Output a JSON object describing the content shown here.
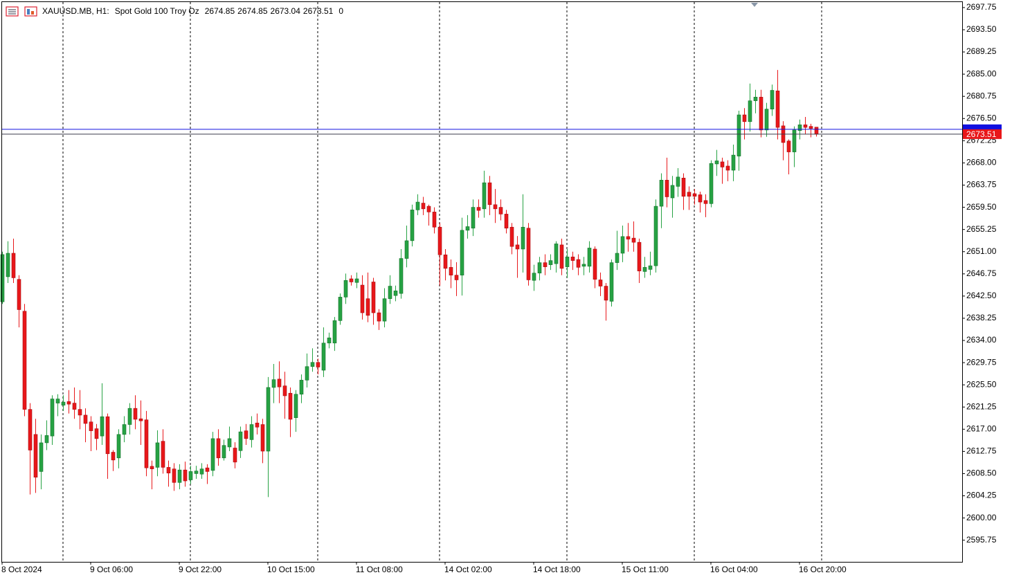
{
  "chart_data": {
    "type": "candlestick",
    "title": "XAUUSD.MB, H1:",
    "subtitle": "Spot Gold 100 Troy Oz",
    "ohlc": [
      2674.85,
      2674.85,
      2673.04,
      2673.51
    ],
    "volume": 0,
    "up_color": "#26a243",
    "down_color": "#e8171a",
    "bid": 2673.51,
    "ask": 2674.44,
    "bid_color": "#e8171a",
    "ask_color": "#1010e0",
    "ylim": [
      2591.6,
      2698.8
    ],
    "yticks": [
      2697.75,
      {
        "value": 2693.5,
        "label": "2693.50"
      },
      2689.25,
      {
        "value": 2685,
        "label": "2685.00"
      },
      2680.75,
      {
        "value": 2676.5,
        "label": "2676.50"
      },
      2672.25,
      {
        "value": 2668,
        "label": "2668.00"
      },
      2663.75,
      {
        "value": 2659.5,
        "label": "2659.50"
      },
      2655.25,
      {
        "value": 2651,
        "label": "2651.00"
      },
      2646.75,
      {
        "value": 2642.5,
        "label": "2642.50"
      },
      2638.25,
      {
        "value": 2634,
        "label": "2634.00"
      },
      2629.75,
      {
        "value": 2625.5,
        "label": "2625.50"
      },
      2621.25,
      {
        "value": 2617,
        "label": "2617.00"
      },
      2612.75,
      {
        "value": 2608.5,
        "label": "2608.50"
      },
      2604.25,
      {
        "value": 2600,
        "label": "2600.00"
      },
      2595.75
    ],
    "categories": [
      "8 Oct 2024",
      null,
      null,
      null,
      null,
      null,
      null,
      null,
      null,
      null,
      null,
      null,
      null,
      null,
      null,
      null,
      "9 Oct 06:00",
      null,
      null,
      null,
      null,
      null,
      null,
      null,
      null,
      null,
      null,
      null,
      null,
      null,
      null,
      null,
      "9 Oct 22:00",
      null,
      null,
      null,
      null,
      null,
      null,
      null,
      null,
      null,
      null,
      null,
      null,
      null,
      null,
      null,
      "10 Oct 15:00",
      null,
      null,
      null,
      null,
      null,
      null,
      null,
      null,
      null,
      null,
      null,
      null,
      null,
      null,
      null,
      "11 Oct 08:00",
      null,
      null,
      null,
      null,
      null,
      null,
      null,
      null,
      null,
      null,
      null,
      null,
      null,
      null,
      null,
      "14 Oct 02:00",
      null,
      null,
      null,
      null,
      null,
      null,
      null,
      null,
      null,
      null,
      null,
      null,
      null,
      null,
      null,
      "14 Oct 18:00",
      null,
      null,
      null,
      null,
      null,
      null,
      null,
      null,
      null,
      null,
      null,
      null,
      null,
      null,
      null,
      "15 Oct 11:00",
      null,
      null,
      null,
      null,
      null,
      null,
      null,
      null,
      null,
      null,
      null,
      null,
      null,
      null,
      null,
      "16 Oct 04:00",
      null,
      null,
      null,
      null,
      null,
      null,
      null,
      null,
      null,
      null,
      null,
      null,
      null,
      null,
      null,
      "16 Oct 20:00",
      null,
      null,
      null
    ],
    "open": [
      2641.4,
      2646.2,
      2650.7,
      2645.7,
      2639.6,
      2620.8,
      2616,
      2608.9,
      2614.4,
      2615.7,
      2622,
      2621.6,
      2622.3,
      2622,
      2620.8,
      2619.7,
      2618.4,
      2617.1,
      2615.7,
      2619.4,
      2612.6,
      2611.5,
      2616,
      2617.9,
      2621,
      2619,
      2618.8,
      2609.9,
      2609.7,
      2614.7,
      2609.7,
      2609.4,
      2606.8,
      2609.2,
      2607.3,
      2608.5,
      2608.4,
      2609.6,
      2609.1,
      2615.2,
      2611.5,
      2613.6,
      2613.4,
      2612.9,
      2616.7,
      2615,
      2618.2,
      2617.9,
      2612.8,
      2625,
      2626.6,
      2625.3,
      2623.9,
      2619.2,
      2623.7,
      2626.4,
      2629,
      2629.8,
      2628.3,
      2633.5,
      2633.5,
      2637.8,
      2642.3,
      2645.8,
      2645.1,
      2644.6,
      2642,
      2645.2,
      2639.3,
      2637.7,
      2642,
      2642.6,
      2643,
      2649.7,
      2653.1,
      2659,
      2660.3,
      2659.7,
      2658.6,
      2655.7,
      2650.4,
      2648,
      2646.5,
      2646.5,
      2655.1,
      2655.5,
      2659.5,
      2659.2,
      2664.2,
      2660,
      2659.5,
      2658.2,
      2655.7,
      2652.3,
      2651.5,
      2655.5,
      2645.5,
      2646.9,
      2648.9,
      2648.5,
      2648.7,
      2652.3,
      2648.1,
      2650,
      2649.5,
      2648.2,
      2648.2,
      2651.5,
      2645.6,
      2644.4,
      2641.5,
      2648.9,
      2650.7,
      2653.9,
      2653.6,
      2652.8,
      2647.2,
      2647.6,
      2648.3,
      2659.7,
      2664.7,
      2661.3,
      2663.5,
      2665.1,
      2662.4,
      2662.1,
      2661.9,
      2660.8,
      2660.2,
      2667.8,
      2668.2,
      2667.4,
      2666.6,
      2669.3,
      2677.2,
      2675.9,
      2679.9,
      2680.6,
      2674.3,
      2678.3,
      2681.8,
      2675.1,
      2672.2,
      2670.1,
      2674.2,
      2675.3,
      2675,
      2674.85
    ],
    "high": [
      2651,
      2653,
      2653.5,
      2646.5,
      2641,
      2622,
      2619,
      2616,
      2618.7,
      2623.5,
      2623.7,
      2623.5,
      2624.5,
      2625,
      2624.5,
      2621,
      2619.5,
      2618,
      2625.8,
      2620,
      2613,
      2617,
      2619.5,
      2622,
      2623.5,
      2622.5,
      2620.5,
      2611,
      2616.8,
      2617,
      2611,
      2610.5,
      2610.3,
      2610.8,
      2610,
      2610,
      2610.5,
      2610.3,
      2616.5,
      2617,
      2615,
      2617.5,
      2614.5,
      2617.5,
      2618,
      2619.5,
      2620,
      2619,
      2627,
      2629.5,
      2630,
      2628,
      2625,
      2624.5,
      2627.5,
      2631.5,
      2632.5,
      2630.5,
      2636.5,
      2635.5,
      2638.5,
      2643,
      2646.8,
      2646.5,
      2647,
      2646.5,
      2647,
      2646,
      2640,
      2644,
      2646.5,
      2644.5,
      2651.5,
      2656,
      2660,
      2662,
      2661.5,
      2660,
      2659.5,
      2656.5,
      2651.5,
      2649.5,
      2649,
      2657.5,
      2658,
      2661,
      2661,
      2666.5,
      2665.5,
      2663,
      2661,
      2659,
      2656.5,
      2654,
      2662,
      2656.5,
      2648.5,
      2650,
      2650.5,
      2650.5,
      2653,
      2653.5,
      2651.5,
      2651,
      2650.5,
      2650,
      2653,
      2652,
      2647,
      2645,
      2649.5,
      2655,
      2656,
      2656.5,
      2656.8,
      2653.5,
      2650,
      2651,
      2661,
      2666,
      2669,
      2665.5,
      2667,
      2666,
      2663.5,
      2663,
      2662.5,
      2662,
      2668.5,
      2670.5,
      2669,
      2668.5,
      2671.5,
      2678,
      2678.5,
      2683.2,
      2682,
      2682,
      2679.5,
      2683,
      2685.8,
      2676,
      2672.5,
      2675,
      2676.3,
      2676.8,
      2675.5,
      2674.85
    ],
    "low": [
      2641,
      2645,
      2645,
      2636.5,
      2619.5,
      2604.5,
      2604.8,
      2605.5,
      2613,
      2614,
      2619.5,
      2620.5,
      2620,
      2619,
      2617,
      2614.5,
      2612.8,
      2613,
      2614,
      2607.5,
      2609,
      2609.5,
      2614.5,
      2616,
      2617,
      2614,
      2608,
      2605.5,
      2608,
      2608.5,
      2606,
      2605.2,
      2605.5,
      2606,
      2606.5,
      2607.5,
      2607.5,
      2606.5,
      2608,
      2610,
      2611,
      2612.8,
      2609.5,
      2611.5,
      2614,
      2613.5,
      2616,
      2610.5,
      2604,
      2622,
      2622,
      2619,
      2615.5,
      2616.5,
      2622,
      2625,
      2628,
      2627.5,
      2627,
      2632.5,
      2632,
      2637,
      2641,
      2644.5,
      2644,
      2638,
      2637.5,
      2637,
      2636,
      2636.5,
      2641,
      2641.5,
      2642,
      2648,
      2652,
      2658,
      2658,
      2656,
      2654.5,
      2644.5,
      2645.5,
      2644,
      2642.5,
      2642.6,
      2653.5,
      2654,
      2657.5,
      2657.5,
      2658,
      2656.5,
      2657,
      2654.5,
      2650.5,
      2646,
      2647,
      2644.5,
      2643.5,
      2645.5,
      2646.5,
      2647.5,
      2647,
      2646.5,
      2646,
      2647.5,
      2646.5,
      2646.5,
      2647,
      2644,
      2642.5,
      2637.8,
      2640.5,
      2647.5,
      2649,
      2651,
      2651,
      2645,
      2646,
      2646.5,
      2647,
      2655.5,
      2659.5,
      2657.5,
      2661.5,
      2659,
      2659,
      2660,
      2658.5,
      2657.6,
      2659.5,
      2665.5,
      2664,
      2664.5,
      2664.5,
      2666.5,
      2672.5,
      2674,
      2677.5,
      2672.9,
      2673,
      2677,
      2672.5,
      2668.5,
      2665.8,
      2667.2,
      2672.5,
      2673.5,
      2672.9,
      2673.04
    ],
    "close": [
      2650.45,
      2650.7,
      2646,
      2639.9,
      2620.8,
      2613,
      2607.8,
      2614.4,
      2615.8,
      2622.8,
      2622.8,
      2622.2,
      2621.8,
      2620.8,
      2619.7,
      2618.1,
      2616.7,
      2615.2,
      2619.4,
      2612.3,
      2611.1,
      2616,
      2617.9,
      2621,
      2618.9,
      2618.6,
      2609.6,
      2609.4,
      2614.4,
      2609.7,
      2608.6,
      2606.8,
      2609.2,
      2607.1,
      2608.9,
      2609,
      2609.4,
      2608.9,
      2615.2,
      2611.5,
      2613.9,
      2615.2,
      2610.7,
      2616.5,
      2615.2,
      2617.9,
      2617.4,
      2612.8,
      2625,
      2626.5,
      2625.1,
      2623.4,
      2618.9,
      2623.7,
      2626.4,
      2629,
      2629.8,
      2628.9,
      2633.5,
      2634.5,
      2637.8,
      2642.3,
      2645.5,
      2645.2,
      2645.8,
      2639.3,
      2638.8,
      2639.3,
      2637.7,
      2642,
      2644.4,
      2643.5,
      2649.7,
      2653.1,
      2659,
      2660.5,
      2659.2,
      2658.6,
      2655.7,
      2650.4,
      2647.8,
      2646.5,
      2645.6,
      2655.1,
      2655.8,
      2659.5,
      2658.9,
      2664.2,
      2660,
      2659.2,
      2658.2,
      2655.5,
      2652,
      2651.5,
      2655.7,
      2645.6,
      2646.9,
      2648.9,
      2648.1,
      2649.3,
      2652.5,
      2647.8,
      2650,
      2649.3,
      2648,
      2648.6,
      2651.7,
      2645.7,
      2644.4,
      2641.7,
      2648.9,
      2650.7,
      2653.9,
      2653.4,
      2652.8,
      2647.3,
      2648,
      2648.3,
      2659.7,
      2664.7,
      2661.5,
      2663.7,
      2665.3,
      2661.6,
      2661.6,
      2661.6,
      2660.5,
      2660.2,
      2667.9,
      2668.4,
      2667.2,
      2666.6,
      2669.5,
      2677.2,
      2675.9,
      2679.9,
      2680.6,
      2674.3,
      2678.3,
      2681.9,
      2674.8,
      2671.9,
      2670.1,
      2674.3,
      2675.3,
      2674.8,
      2674.6,
      2673.51
    ]
  }
}
